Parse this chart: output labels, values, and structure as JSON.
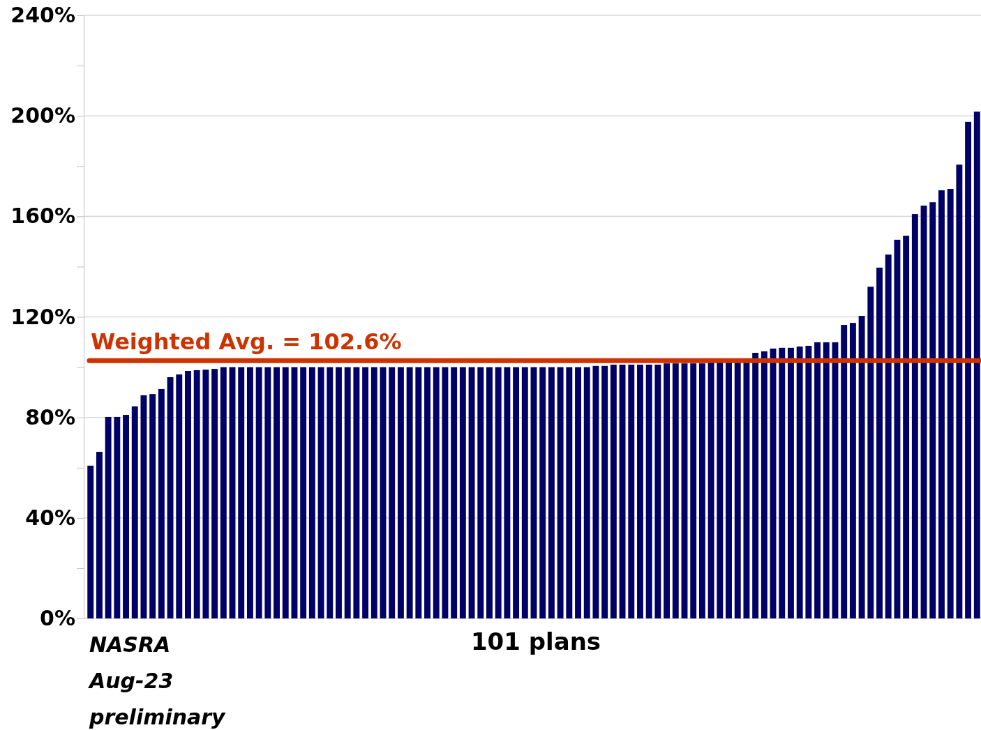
{
  "chart_data": {
    "type": "bar",
    "xlabel": "101 plans",
    "categories": [
      null,
      null,
      null,
      null,
      null,
      null,
      null,
      null,
      null,
      null,
      null,
      null,
      null,
      null,
      null,
      null,
      null,
      null,
      null,
      null,
      null,
      null,
      null,
      null,
      null,
      null,
      null,
      null,
      null,
      null,
      null,
      null,
      null,
      null,
      null,
      null,
      null,
      null,
      null,
      null,
      null,
      null,
      null,
      null,
      null,
      null,
      null,
      null,
      null,
      null,
      null,
      null,
      null,
      null,
      null,
      null,
      null,
      null,
      null,
      null,
      null,
      null,
      null,
      null,
      null,
      null,
      null,
      null,
      null,
      null,
      null,
      null,
      null,
      null,
      null,
      null,
      null,
      null,
      null,
      null,
      null,
      null,
      null,
      null,
      null,
      null,
      null,
      null,
      null,
      null,
      null,
      null,
      null,
      null,
      null,
      null,
      null,
      null,
      null,
      null,
      null
    ],
    "values": [
      60.8,
      66.3,
      80.2,
      80.2,
      81,
      84.4,
      88.8,
      89.3,
      91.3,
      96,
      97.1,
      98.5,
      98.8,
      99,
      99.3,
      100,
      100,
      100,
      100,
      100,
      100,
      100,
      100,
      100,
      100,
      100,
      100,
      100,
      100,
      100,
      100,
      100,
      100,
      100,
      100,
      100,
      100,
      100,
      100,
      100,
      100,
      100,
      100,
      100,
      100,
      100,
      100,
      100,
      100,
      100,
      100,
      100,
      100,
      100,
      100,
      100,
      100,
      100.5,
      100.5,
      101,
      101,
      101,
      101,
      101,
      101,
      101.5,
      101.5,
      101.5,
      101.5,
      101.5,
      102,
      102,
      102,
      102,
      102,
      105.7,
      106.3,
      107.4,
      107.7,
      107.7,
      108.2,
      108.5,
      109.9,
      109.9,
      109.9,
      116.8,
      117.6,
      120.4,
      132,
      139.6,
      144.8,
      150.7,
      152.3,
      160.9,
      164.3,
      165.6,
      170.4,
      170.9,
      180.6,
      197.6,
      201.7
    ],
    "color": "#000066",
    "ylim": [
      0,
      240
    ],
    "yticks": [
      {
        "value": 0,
        "label": "0%"
      },
      {
        "value": 20,
        "label": null
      },
      {
        "value": 40,
        "label": "40%"
      },
      {
        "value": 60,
        "label": null
      },
      {
        "value": 80,
        "label": "80%"
      },
      {
        "value": 100,
        "label": null
      },
      {
        "value": 120,
        "label": "120%"
      },
      {
        "value": 140,
        "label": null
      },
      {
        "value": 160,
        "label": "160%"
      },
      {
        "value": 180,
        "label": null
      },
      {
        "value": 200,
        "label": "200%"
      },
      {
        "value": 220,
        "label": null
      },
      {
        "value": 240,
        "label": "240%"
      }
    ],
    "grid": "y",
    "ref_lines": [
      {
        "axis": "y",
        "value": 102.6,
        "label": "Weighted Avg. = 102.6%",
        "color": "#cc3300"
      }
    ],
    "annotations": [
      "NASRA\nAug-23\npreliminary"
    ]
  }
}
